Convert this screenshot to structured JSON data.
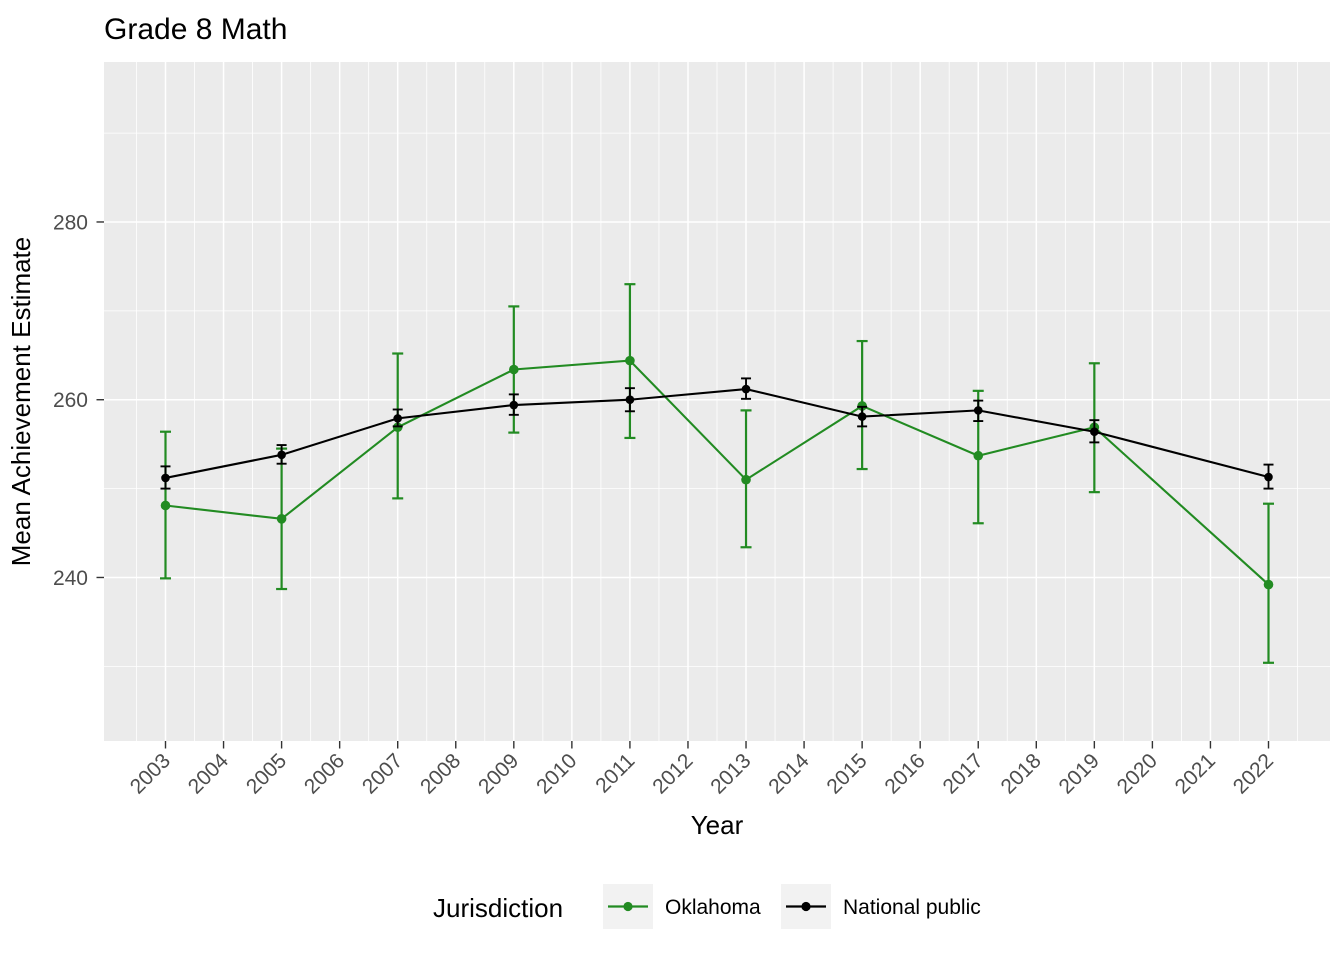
{
  "chart_data": {
    "type": "line",
    "title": "Grade 8 Math",
    "xlabel": "Year",
    "ylabel": "Mean Achievement Estimate",
    "legend_title": "Jurisdiction",
    "legend_position": "bottom",
    "grid": true,
    "panel_bg_color": "#EBEBEB",
    "grid_color": "#FFFFFF",
    "tick_text_color": "#4D4D4D",
    "tick_mark_color": "#333333",
    "legend_key_bg_color": "#F2F2F2",
    "categories": [
      "2003",
      "2004",
      "2005",
      "2006",
      "2007",
      "2008",
      "2009",
      "2010",
      "2011",
      "2012",
      "2013",
      "2014",
      "2015",
      "2016",
      "2017",
      "2018",
      "2019",
      "2020",
      "2021",
      "2022"
    ],
    "y_ticks": [
      240,
      260,
      280
    ],
    "y_minor_ticks": [
      230,
      250,
      270,
      290
    ],
    "ylim": [
      221.6,
      298.0
    ],
    "error_bars": true,
    "series": [
      {
        "name": "Oklahoma",
        "color": "#228B22",
        "points": [
          {
            "year": "2003",
            "mean": 248.1,
            "lo": 239.9,
            "hi": 256.4
          },
          {
            "year": "2005",
            "mean": 246.6,
            "lo": 238.7,
            "hi": 254.5
          },
          {
            "year": "2007",
            "mean": 256.9,
            "lo": 248.9,
            "hi": 265.2
          },
          {
            "year": "2009",
            "mean": 263.4,
            "lo": 256.3,
            "hi": 270.5
          },
          {
            "year": "2011",
            "mean": 264.4,
            "lo": 255.7,
            "hi": 273.0
          },
          {
            "year": "2013",
            "mean": 251.0,
            "lo": 243.4,
            "hi": 258.8
          },
          {
            "year": "2015",
            "mean": 259.3,
            "lo": 252.2,
            "hi": 266.6
          },
          {
            "year": "2017",
            "mean": 253.7,
            "lo": 246.1,
            "hi": 261.0
          },
          {
            "year": "2019",
            "mean": 256.9,
            "lo": 249.6,
            "hi": 264.1
          },
          {
            "year": "2022",
            "mean": 239.2,
            "lo": 230.4,
            "hi": 248.3
          }
        ]
      },
      {
        "name": "National public",
        "color": "#000000",
        "points": [
          {
            "year": "2003",
            "mean": 251.2,
            "lo": 250.0,
            "hi": 252.5
          },
          {
            "year": "2005",
            "mean": 253.8,
            "lo": 252.8,
            "hi": 254.9
          },
          {
            "year": "2007",
            "mean": 257.9,
            "lo": 257.0,
            "hi": 258.9
          },
          {
            "year": "2009",
            "mean": 259.4,
            "lo": 258.3,
            "hi": 260.6
          },
          {
            "year": "2011",
            "mean": 260.0,
            "lo": 258.7,
            "hi": 261.3
          },
          {
            "year": "2013",
            "mean": 261.2,
            "lo": 260.1,
            "hi": 262.4
          },
          {
            "year": "2015",
            "mean": 258.1,
            "lo": 257.0,
            "hi": 259.2
          },
          {
            "year": "2017",
            "mean": 258.8,
            "lo": 257.6,
            "hi": 259.9
          },
          {
            "year": "2019",
            "mean": 256.4,
            "lo": 255.2,
            "hi": 257.7
          },
          {
            "year": "2022",
            "mean": 251.3,
            "lo": 250.0,
            "hi": 252.7
          }
        ]
      }
    ]
  }
}
